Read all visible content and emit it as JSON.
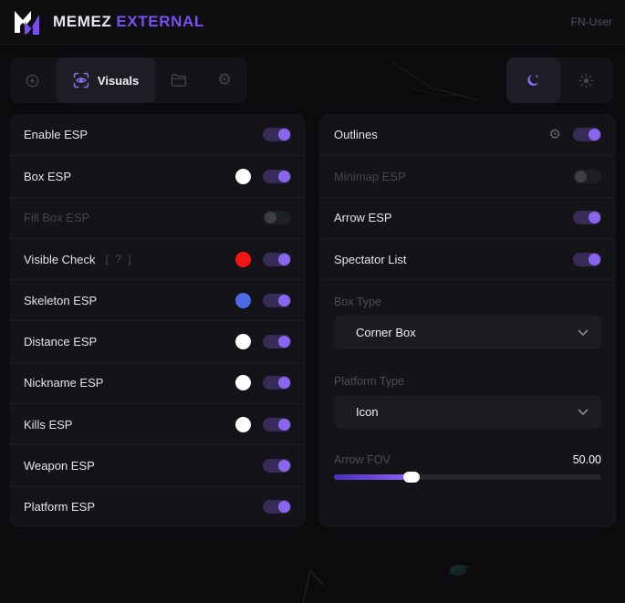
{
  "colors": {
    "accent": "#7a4ff2",
    "toggle_on_track": "#372c58",
    "toggle_on_knob": "#8a66f0",
    "toggle_off_track": "#1e1e25",
    "toggle_off_knob": "#3d3d46",
    "slider_fill_start": "#4b30b8",
    "slider_fill_end": "#8c62f4",
    "swatch_white": "#ffffff",
    "swatch_red": "#f41414",
    "swatch_blue": "#4a6ae8"
  },
  "header": {
    "brand": "MEMEZ",
    "brand_accent": "EXTERNAL",
    "user_label": "FN-User"
  },
  "nav": {
    "tabs": [
      {
        "id": "aim",
        "icon": "crosshair-icon",
        "active": false
      },
      {
        "id": "visuals",
        "icon": "eye-scan-icon",
        "label": "Visuals",
        "active": true
      },
      {
        "id": "configs",
        "icon": "folder-icon",
        "active": false
      },
      {
        "id": "settings",
        "icon": "gear-icon",
        "active": false
      }
    ],
    "theme_toggle": {
      "options": [
        "dark",
        "light"
      ],
      "active": "dark",
      "dark_icon": "moon-icon",
      "light_icon": "sun-icon"
    }
  },
  "left_panel": {
    "rows": [
      {
        "label": "Enable ESP",
        "toggle": "on"
      },
      {
        "label": "Box ESP",
        "toggle": "on",
        "swatch": "#ffffff"
      },
      {
        "label": "Fill Box ESP",
        "toggle": "off",
        "disabled": true
      },
      {
        "label": "Visible Check",
        "toggle": "on",
        "swatch": "#f41414",
        "hint": "[ ? ]"
      },
      {
        "label": "Skeleton ESP",
        "toggle": "on",
        "swatch": "#4a6ae8"
      },
      {
        "label": "Distance ESP",
        "toggle": "on",
        "swatch": "#ffffff"
      },
      {
        "label": "Nickname ESP",
        "toggle": "on",
        "swatch": "#ffffff"
      },
      {
        "label": "Kills ESP",
        "toggle": "on",
        "swatch": "#ffffff"
      },
      {
        "label": "Weapon ESP",
        "toggle": "on"
      },
      {
        "label": "Platform ESP",
        "toggle": "on"
      }
    ]
  },
  "right_panel": {
    "rows": [
      {
        "label": "Outlines",
        "toggle": "on",
        "settings_gear": "gear-icon"
      },
      {
        "label": "Minimap ESP",
        "toggle": "off",
        "disabled": true
      },
      {
        "label": "Arrow ESP",
        "toggle": "on"
      },
      {
        "label": "Spectator List",
        "toggle": "on"
      }
    ],
    "box_type": {
      "label": "Box Type",
      "value": "Corner Box"
    },
    "platform_type": {
      "label": "Platform Type",
      "value": "Icon"
    },
    "arrow_fov": {
      "label": "Arrow FOV",
      "value": "50.00",
      "fill_percent": 29
    }
  }
}
